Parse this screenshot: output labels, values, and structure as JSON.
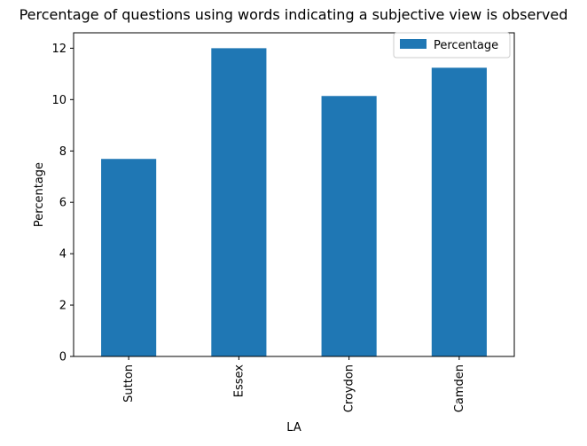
{
  "chart_data": {
    "type": "bar",
    "title": "Percentage of questions using words indicating a subjective view is observed",
    "xlabel": "LA",
    "ylabel": "Percentage",
    "categories": [
      "Sutton",
      "Essex",
      "Croydon",
      "Camden"
    ],
    "series": [
      {
        "name": "Percentage",
        "values": [
          7.69,
          12.0,
          10.14,
          11.24
        ],
        "color": "#1f77b4"
      }
    ],
    "ylim": [
      0,
      12.6
    ],
    "yticks": [
      0,
      2,
      4,
      6,
      8,
      10,
      12
    ],
    "ytick_labels": [
      "0",
      "2",
      "4",
      "6",
      "8",
      "10",
      "12"
    ],
    "grid": false,
    "legend": {
      "position": "top-right",
      "entries": [
        "Percentage"
      ]
    }
  }
}
